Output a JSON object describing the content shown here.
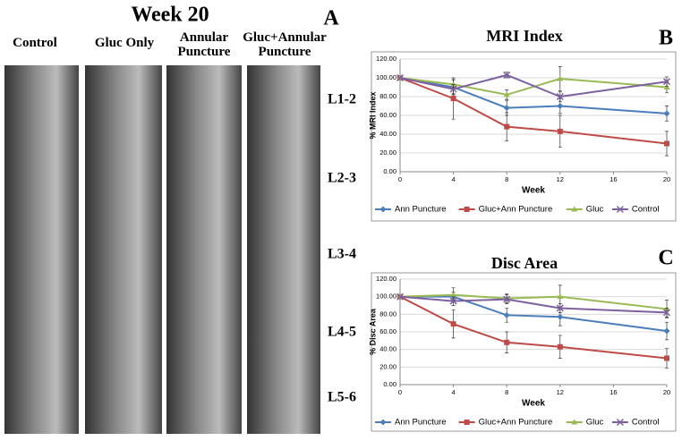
{
  "figure": {
    "title": "Week 20",
    "panel_a": "A",
    "panel_b": "B",
    "panel_c": "C",
    "columns": [
      "Control",
      "Gluc Only",
      "Annular Puncture",
      "Gluc+Annular Puncture"
    ],
    "levels": [
      "L1-2",
      "L2-3",
      "L3-4",
      "L4-5",
      "L5-6"
    ]
  },
  "chart_data": [
    {
      "type": "line",
      "title": "MRI Index",
      "x_label": "Week",
      "y_label": "% MRI Index",
      "x": [
        0,
        4,
        8,
        12,
        20
      ],
      "xlim": [
        0,
        20
      ],
      "xticks": [
        0,
        4,
        8,
        12,
        16,
        20
      ],
      "ylim": [
        0,
        120
      ],
      "yticks": [
        {
          "value": 0,
          "label": "0.00"
        },
        {
          "value": 20,
          "label": "20.00"
        },
        {
          "value": 40,
          "label": "40.00"
        },
        {
          "value": 60,
          "label": "60.00"
        },
        {
          "value": 80,
          "label": "80.00"
        },
        {
          "value": 100,
          "label": "100.00"
        },
        {
          "value": 120,
          "label": "120.00"
        }
      ],
      "legend": "bottom",
      "series": [
        {
          "name": "Ann Puncture",
          "color": "#4a7ebb",
          "marker": "diamond",
          "values": [
            100,
            90,
            68,
            70,
            62
          ],
          "errors": [
            0,
            8,
            8,
            8,
            8
          ]
        },
        {
          "name": "Gluc+Ann Puncture",
          "color": "#be4b48",
          "marker": "square",
          "values": [
            100,
            78,
            48,
            43,
            30
          ],
          "errors": [
            0,
            22,
            15,
            17,
            13
          ]
        },
        {
          "name": "Gluc",
          "color": "#98b954",
          "marker": "triangle",
          "values": [
            100,
            93,
            82,
            99,
            90
          ],
          "errors": [
            0,
            5,
            5,
            13,
            6
          ]
        },
        {
          "name": "Control",
          "color": "#7d60a0",
          "marker": "x",
          "values": [
            100,
            88,
            103,
            80,
            96
          ],
          "errors": [
            0,
            5,
            3,
            5,
            5
          ]
        }
      ]
    },
    {
      "type": "line",
      "title": "Disc Area",
      "x_label": "Week",
      "y_label": "% Disc Area",
      "x": [
        0,
        4,
        8,
        12,
        20
      ],
      "xlim": [
        0,
        20
      ],
      "xticks": [
        0,
        4,
        8,
        12,
        16,
        20
      ],
      "ylim": [
        0,
        120
      ],
      "yticks": [
        {
          "value": 0,
          "label": "0.00"
        },
        {
          "value": 20,
          "label": "20.00"
        },
        {
          "value": 40,
          "label": "40.00"
        },
        {
          "value": 60,
          "label": "60.00"
        },
        {
          "value": 80,
          "label": "80.00"
        },
        {
          "value": 100,
          "label": "100.00"
        },
        {
          "value": 120,
          "label": "120.00"
        }
      ],
      "legend": "bottom",
      "series": [
        {
          "name": "Ann Puncture",
          "color": "#4a7ebb",
          "marker": "diamond",
          "values": [
            100,
            100,
            79,
            77,
            61
          ],
          "errors": [
            0,
            5,
            8,
            10,
            10
          ]
        },
        {
          "name": "Gluc+Ann Puncture",
          "color": "#be4b48",
          "marker": "square",
          "values": [
            100,
            69,
            48,
            43,
            30
          ],
          "errors": [
            0,
            16,
            12,
            13,
            11
          ]
        },
        {
          "name": "Gluc",
          "color": "#98b954",
          "marker": "triangle",
          "values": [
            100,
            102,
            98,
            100,
            86
          ],
          "errors": [
            0,
            8,
            5,
            13,
            10
          ]
        },
        {
          "name": "Control",
          "color": "#7d60a0",
          "marker": "x",
          "values": [
            100,
            95,
            97,
            87,
            82
          ],
          "errors": [
            0,
            5,
            5,
            5,
            5
          ]
        }
      ]
    }
  ]
}
